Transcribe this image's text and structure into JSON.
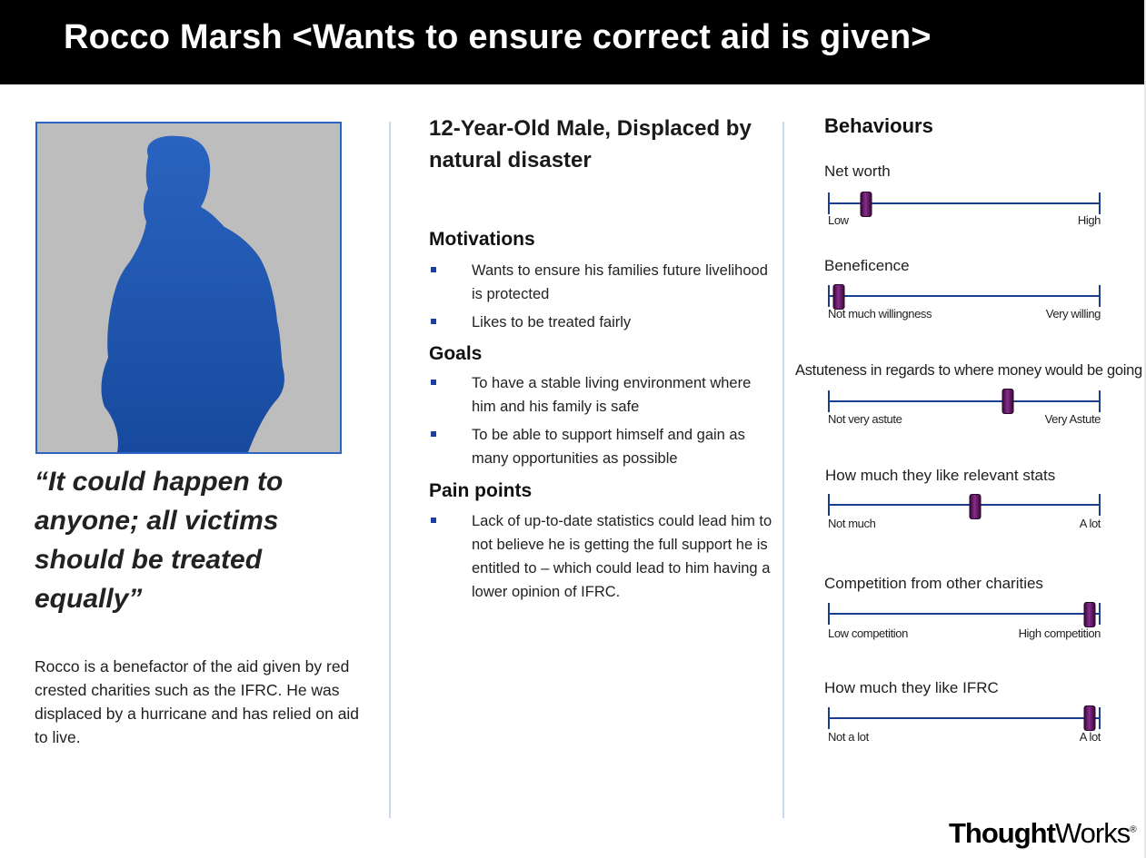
{
  "header": {
    "title": "Rocco Marsh <Wants to ensure correct aid is given>",
    "background": "#000000"
  },
  "profile": {
    "photo_icon": "person-silhouette-icon",
    "quote": "“It could happen to anyone; all victims should be treated equally”",
    "bio": "Rocco is a benefactor of the aid given by red crested charities such as the IFRC. He was displaced by a hurricane and has relied on aid to live."
  },
  "details": {
    "subtitle": "12-Year-Old Male, Displaced by natural disaster",
    "motivations": {
      "heading": "Motivations",
      "items": [
        "Wants to ensure his families future livelihood is protected",
        "Likes to be treated fairly"
      ]
    },
    "goals": {
      "heading": "Goals",
      "items": [
        "To have a stable living environment where him and his family is safe",
        "To be able to support himself and gain as many opportunities as possible"
      ]
    },
    "pain_points": {
      "heading": "Pain points",
      "items": [
        "Lack of up-to-date statistics could lead him to not believe he is getting the full support he is entitled to – which could lead to him having a lower opinion of IFRC."
      ]
    }
  },
  "behaviours": {
    "heading": "Behaviours",
    "accent": "#1d3e8f",
    "marker_color": "#6b1f6e",
    "scales": [
      {
        "label": "Net worth",
        "low": "Low",
        "high": "High",
        "value": 0.14
      },
      {
        "label": "Beneficence",
        "low": "Not much willingness",
        "high": "Very willing",
        "value": 0.04
      },
      {
        "label": "Astuteness in regards to where money would be going",
        "low": "Not very astute",
        "high": "Very Astute",
        "value": 0.66
      },
      {
        "label": "How much they like relevant stats",
        "low": "Not much",
        "high": "A lot",
        "value": 0.54
      },
      {
        "label": "Competition from other charities",
        "low": "Low competition",
        "high": "High competition",
        "value": 0.96
      },
      {
        "label": "How much they like IFRC",
        "low": "Not a lot",
        "high": "A lot",
        "value": 0.96
      }
    ]
  },
  "footer": {
    "logo_bold": "Thought",
    "logo_regular": "Works",
    "logo_mark": "®"
  }
}
